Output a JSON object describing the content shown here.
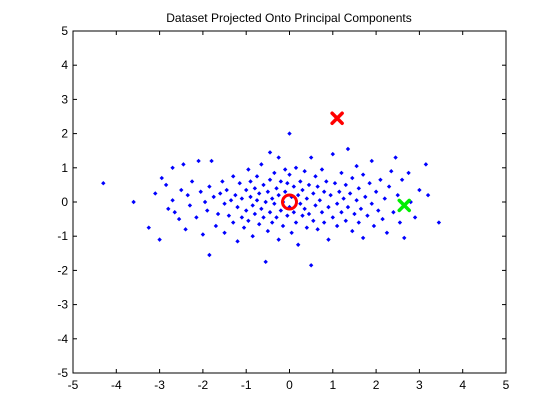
{
  "chart_data": {
    "type": "scatter",
    "title": "Dataset Projected Onto Principal Components",
    "xlabel": "",
    "ylabel": "",
    "xlim": [
      -5,
      5
    ],
    "ylim": [
      -5,
      5
    ],
    "grid": false,
    "x_ticks": [
      "-5",
      "-4",
      "-3",
      "-2",
      "-1",
      "0",
      "1",
      "2",
      "3",
      "4",
      "5"
    ],
    "y_ticks": [
      "5",
      "4",
      "3",
      "2",
      "1",
      "0",
      "-1",
      "-2",
      "-3",
      "-4",
      "-5"
    ],
    "series": [
      {
        "marker": "dot",
        "color": "#0000ff",
        "points": [
          [
            -4.3,
            0.55
          ],
          [
            -3.6,
            0.0
          ],
          [
            -3.25,
            -0.75
          ],
          [
            -3.1,
            0.25
          ],
          [
            -3.0,
            -1.1
          ],
          [
            -2.95,
            0.7
          ],
          [
            -2.85,
            0.5
          ],
          [
            -2.8,
            -0.2
          ],
          [
            -2.7,
            0.05
          ],
          [
            -2.7,
            1.0
          ],
          [
            -2.65,
            -0.3
          ],
          [
            -2.55,
            -0.5
          ],
          [
            -2.5,
            0.35
          ],
          [
            -2.45,
            1.1
          ],
          [
            -2.4,
            -0.8
          ],
          [
            -2.35,
            0.2
          ],
          [
            -2.3,
            -0.1
          ],
          [
            -2.25,
            0.6
          ],
          [
            -2.15,
            -0.45
          ],
          [
            -2.1,
            1.2
          ],
          [
            -2.05,
            0.3
          ],
          [
            -2.0,
            -0.95
          ],
          [
            -1.95,
            0.0
          ],
          [
            -1.9,
            -0.25
          ],
          [
            -1.85,
            0.45
          ],
          [
            -1.85,
            -1.55
          ],
          [
            -1.8,
            1.2
          ],
          [
            -1.75,
            0.15
          ],
          [
            -1.7,
            -0.7
          ],
          [
            -1.65,
            -0.35
          ],
          [
            -1.6,
            0.25
          ],
          [
            -1.55,
            0.6
          ],
          [
            -1.5,
            -0.05
          ],
          [
            -1.5,
            -0.9
          ],
          [
            -1.45,
            0.35
          ],
          [
            -1.4,
            -0.4
          ],
          [
            -1.35,
            0.05
          ],
          [
            -1.3,
            -0.6
          ],
          [
            -1.3,
            0.75
          ],
          [
            -1.25,
            0.2
          ],
          [
            -1.2,
            -0.15
          ],
          [
            -1.2,
            -1.15
          ],
          [
            -1.15,
            0.55
          ],
          [
            -1.1,
            -0.45
          ],
          [
            -1.1,
            0.1
          ],
          [
            -1.05,
            -0.75
          ],
          [
            -1.0,
            0.35
          ],
          [
            -1.0,
            -0.25
          ],
          [
            -0.95,
            0.95
          ],
          [
            -0.95,
            -0.55
          ],
          [
            -0.9,
            0.15
          ],
          [
            -0.9,
            0.6
          ],
          [
            -0.85,
            -0.1
          ],
          [
            -0.85,
            -1.0
          ],
          [
            -0.8,
            0.4
          ],
          [
            -0.8,
            -0.35
          ],
          [
            -0.75,
            0.75
          ],
          [
            -0.75,
            0.05
          ],
          [
            -0.7,
            -0.65
          ],
          [
            -0.7,
            0.25
          ],
          [
            -0.65,
            -0.2
          ],
          [
            -0.65,
            1.1
          ],
          [
            -0.6,
            0.5
          ],
          [
            -0.6,
            -0.45
          ],
          [
            -0.55,
            -1.75
          ],
          [
            -0.55,
            0.0
          ],
          [
            -0.5,
            0.3
          ],
          [
            -0.5,
            -0.85
          ],
          [
            -0.45,
            1.45
          ],
          [
            -0.45,
            0.65
          ],
          [
            -0.45,
            -0.3
          ],
          [
            -0.4,
            0.1
          ],
          [
            -0.4,
            -0.6
          ],
          [
            -0.35,
            0.85
          ],
          [
            -0.35,
            -0.05
          ],
          [
            -0.3,
            0.4
          ],
          [
            -0.3,
            -0.45
          ],
          [
            -0.25,
            1.3
          ],
          [
            -0.25,
            0.2
          ],
          [
            -0.25,
            -1.1
          ],
          [
            -0.2,
            -0.25
          ],
          [
            -0.2,
            0.6
          ],
          [
            -0.15,
            0.0
          ],
          [
            -0.15,
            -0.7
          ],
          [
            -0.1,
            0.95
          ],
          [
            -0.1,
            0.3
          ],
          [
            -0.05,
            -0.4
          ],
          [
            -0.05,
            0.55
          ],
          [
            0.0,
            2.0
          ],
          [
            0.0,
            -0.15
          ],
          [
            0.0,
            0.8
          ],
          [
            0.05,
            0.15
          ],
          [
            0.05,
            -0.9
          ],
          [
            0.1,
            0.45
          ],
          [
            0.1,
            -0.3
          ],
          [
            0.15,
            1.0
          ],
          [
            0.15,
            -0.6
          ],
          [
            0.2,
            0.2
          ],
          [
            0.2,
            -1.25
          ],
          [
            0.25,
            -0.05
          ],
          [
            0.25,
            0.6
          ],
          [
            0.3,
            -0.4
          ],
          [
            0.3,
            0.35
          ],
          [
            0.35,
            0.9
          ],
          [
            0.35,
            -0.2
          ],
          [
            0.4,
            0.1
          ],
          [
            0.4,
            -0.75
          ],
          [
            0.45,
            0.5
          ],
          [
            0.45,
            -0.35
          ],
          [
            0.5,
            1.3
          ],
          [
            0.5,
            -1.85
          ],
          [
            0.55,
            0.25
          ],
          [
            0.55,
            -0.55
          ],
          [
            0.6,
            0.75
          ],
          [
            0.6,
            -0.1
          ],
          [
            0.65,
            0.45
          ],
          [
            0.65,
            -0.8
          ],
          [
            0.7,
            0.05
          ],
          [
            0.75,
            -0.3
          ],
          [
            0.75,
            0.95
          ],
          [
            0.8,
            0.3
          ],
          [
            0.8,
            -0.6
          ],
          [
            0.85,
            0.6
          ],
          [
            0.9,
            -0.15
          ],
          [
            0.9,
            -1.1
          ],
          [
            0.95,
            0.2
          ],
          [
            1.0,
            1.4
          ],
          [
            1.0,
            -0.45
          ],
          [
            1.05,
            0.55
          ],
          [
            1.1,
            -0.05
          ],
          [
            1.1,
            -0.7
          ],
          [
            1.15,
            0.3
          ],
          [
            1.2,
            0.85
          ],
          [
            1.2,
            -0.3
          ],
          [
            1.25,
            0.1
          ],
          [
            1.3,
            -0.55
          ],
          [
            1.3,
            0.5
          ],
          [
            1.35,
            1.55
          ],
          [
            1.35,
            -0.15
          ],
          [
            1.4,
            0.25
          ],
          [
            1.45,
            -0.85
          ],
          [
            1.45,
            0.7
          ],
          [
            1.5,
            -0.35
          ],
          [
            1.55,
            0.05
          ],
          [
            1.55,
            1.05
          ],
          [
            1.6,
            -0.6
          ],
          [
            1.6,
            0.4
          ],
          [
            1.65,
            -0.2
          ],
          [
            1.7,
            0.8
          ],
          [
            1.7,
            -1.05
          ],
          [
            1.75,
            0.15
          ],
          [
            1.8,
            -0.4
          ],
          [
            1.85,
            0.55
          ],
          [
            1.9,
            -0.05
          ],
          [
            1.9,
            1.2
          ],
          [
            1.95,
            -0.7
          ],
          [
            2.0,
            0.3
          ],
          [
            2.05,
            -0.25
          ],
          [
            2.1,
            0.65
          ],
          [
            2.15,
            -0.5
          ],
          [
            2.2,
            0.1
          ],
          [
            2.25,
            -0.9
          ],
          [
            2.3,
            0.45
          ],
          [
            2.35,
            0.9
          ],
          [
            2.4,
            -0.3
          ],
          [
            2.45,
            1.3
          ],
          [
            2.5,
            0.2
          ],
          [
            2.55,
            -0.6
          ],
          [
            2.6,
            0.65
          ],
          [
            2.65,
            -1.05
          ],
          [
            2.75,
            0.85
          ],
          [
            2.8,
            0.0
          ],
          [
            2.9,
            -0.45
          ],
          [
            3.0,
            0.35
          ],
          [
            3.15,
            1.1
          ],
          [
            3.2,
            0.2
          ],
          [
            3.45,
            -0.6
          ]
        ]
      },
      {
        "marker": "circle",
        "color": "#ff0000",
        "points": [
          [
            0.0,
            0.0
          ]
        ]
      },
      {
        "marker": "x",
        "color": "#ff0000",
        "points": [
          [
            1.1,
            2.45
          ]
        ]
      },
      {
        "marker": "x",
        "color": "#00ee00",
        "points": [
          [
            2.65,
            -0.1
          ]
        ]
      }
    ]
  }
}
